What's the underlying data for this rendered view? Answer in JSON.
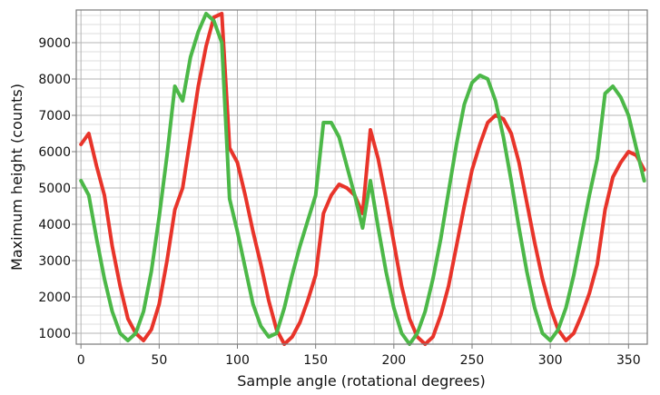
{
  "chart_data": {
    "type": "line",
    "xlabel": "Sample angle (rotational degrees)",
    "ylabel": "Maximum height (counts)",
    "xlim": [
      -3,
      362
    ],
    "ylim": [
      700,
      9900
    ],
    "x_ticks": [
      0,
      50,
      100,
      150,
      200,
      250,
      300,
      350
    ],
    "y_ticks": [
      1000,
      2000,
      3000,
      4000,
      5000,
      6000,
      7000,
      8000,
      9000
    ],
    "grid": true,
    "series": [
      {
        "color": "#e8342a",
        "points": [
          [
            0,
            6200
          ],
          [
            5,
            6500
          ],
          [
            10,
            5600
          ],
          [
            15,
            4800
          ],
          [
            20,
            3400
          ],
          [
            25,
            2300
          ],
          [
            30,
            1400
          ],
          [
            35,
            1000
          ],
          [
            40,
            800
          ],
          [
            45,
            1100
          ],
          [
            50,
            1800
          ],
          [
            55,
            3000
          ],
          [
            60,
            4400
          ],
          [
            65,
            5000
          ],
          [
            70,
            6400
          ],
          [
            75,
            7800
          ],
          [
            80,
            8900
          ],
          [
            85,
            9700
          ],
          [
            90,
            9800
          ],
          [
            95,
            6100
          ],
          [
            100,
            5700
          ],
          [
            105,
            4800
          ],
          [
            110,
            3800
          ],
          [
            115,
            2900
          ],
          [
            120,
            1900
          ],
          [
            125,
            1100
          ],
          [
            130,
            700
          ],
          [
            135,
            900
          ],
          [
            140,
            1300
          ],
          [
            145,
            1900
          ],
          [
            150,
            2600
          ],
          [
            155,
            4300
          ],
          [
            160,
            4800
          ],
          [
            165,
            5100
          ],
          [
            170,
            5000
          ],
          [
            175,
            4800
          ],
          [
            180,
            4300
          ],
          [
            185,
            6600
          ],
          [
            190,
            5800
          ],
          [
            195,
            4700
          ],
          [
            200,
            3500
          ],
          [
            205,
            2300
          ],
          [
            210,
            1400
          ],
          [
            215,
            900
          ],
          [
            220,
            700
          ],
          [
            225,
            900
          ],
          [
            230,
            1500
          ],
          [
            235,
            2300
          ],
          [
            240,
            3400
          ],
          [
            245,
            4500
          ],
          [
            250,
            5500
          ],
          [
            255,
            6200
          ],
          [
            260,
            6800
          ],
          [
            265,
            7000
          ],
          [
            270,
            6900
          ],
          [
            275,
            6500
          ],
          [
            280,
            5700
          ],
          [
            285,
            4600
          ],
          [
            290,
            3500
          ],
          [
            295,
            2500
          ],
          [
            300,
            1700
          ],
          [
            305,
            1100
          ],
          [
            310,
            800
          ],
          [
            315,
            1000
          ],
          [
            320,
            1500
          ],
          [
            325,
            2100
          ],
          [
            330,
            2900
          ],
          [
            335,
            4400
          ],
          [
            340,
            5300
          ],
          [
            345,
            5700
          ],
          [
            350,
            6000
          ],
          [
            355,
            5900
          ],
          [
            360,
            5500
          ]
        ]
      },
      {
        "color": "#4cb848",
        "points": [
          [
            0,
            5200
          ],
          [
            5,
            4800
          ],
          [
            10,
            3600
          ],
          [
            15,
            2500
          ],
          [
            20,
            1600
          ],
          [
            25,
            1000
          ],
          [
            30,
            800
          ],
          [
            35,
            1000
          ],
          [
            40,
            1600
          ],
          [
            45,
            2700
          ],
          [
            50,
            4200
          ],
          [
            55,
            5900
          ],
          [
            60,
            7800
          ],
          [
            65,
            7400
          ],
          [
            70,
            8600
          ],
          [
            75,
            9300
          ],
          [
            80,
            9800
          ],
          [
            85,
            9600
          ],
          [
            90,
            9000
          ],
          [
            95,
            4700
          ],
          [
            100,
            3800
          ],
          [
            105,
            2800
          ],
          [
            110,
            1800
          ],
          [
            115,
            1200
          ],
          [
            120,
            900
          ],
          [
            125,
            1000
          ],
          [
            130,
            1700
          ],
          [
            135,
            2600
          ],
          [
            140,
            3400
          ],
          [
            145,
            4100
          ],
          [
            150,
            4800
          ],
          [
            155,
            6800
          ],
          [
            160,
            6800
          ],
          [
            165,
            6400
          ],
          [
            170,
            5600
          ],
          [
            175,
            4800
          ],
          [
            180,
            3900
          ],
          [
            185,
            5200
          ],
          [
            190,
            3900
          ],
          [
            195,
            2700
          ],
          [
            200,
            1700
          ],
          [
            205,
            1000
          ],
          [
            210,
            700
          ],
          [
            215,
            1000
          ],
          [
            220,
            1600
          ],
          [
            225,
            2500
          ],
          [
            230,
            3600
          ],
          [
            235,
            4900
          ],
          [
            240,
            6200
          ],
          [
            245,
            7300
          ],
          [
            250,
            7900
          ],
          [
            255,
            8100
          ],
          [
            260,
            8000
          ],
          [
            265,
            7400
          ],
          [
            270,
            6400
          ],
          [
            275,
            5200
          ],
          [
            280,
            3900
          ],
          [
            285,
            2700
          ],
          [
            290,
            1700
          ],
          [
            295,
            1000
          ],
          [
            300,
            800
          ],
          [
            305,
            1100
          ],
          [
            310,
            1700
          ],
          [
            315,
            2600
          ],
          [
            320,
            3700
          ],
          [
            325,
            4800
          ],
          [
            330,
            5800
          ],
          [
            335,
            7600
          ],
          [
            340,
            7800
          ],
          [
            345,
            7500
          ],
          [
            350,
            7000
          ],
          [
            355,
            6100
          ],
          [
            360,
            5200
          ]
        ]
      }
    ]
  }
}
